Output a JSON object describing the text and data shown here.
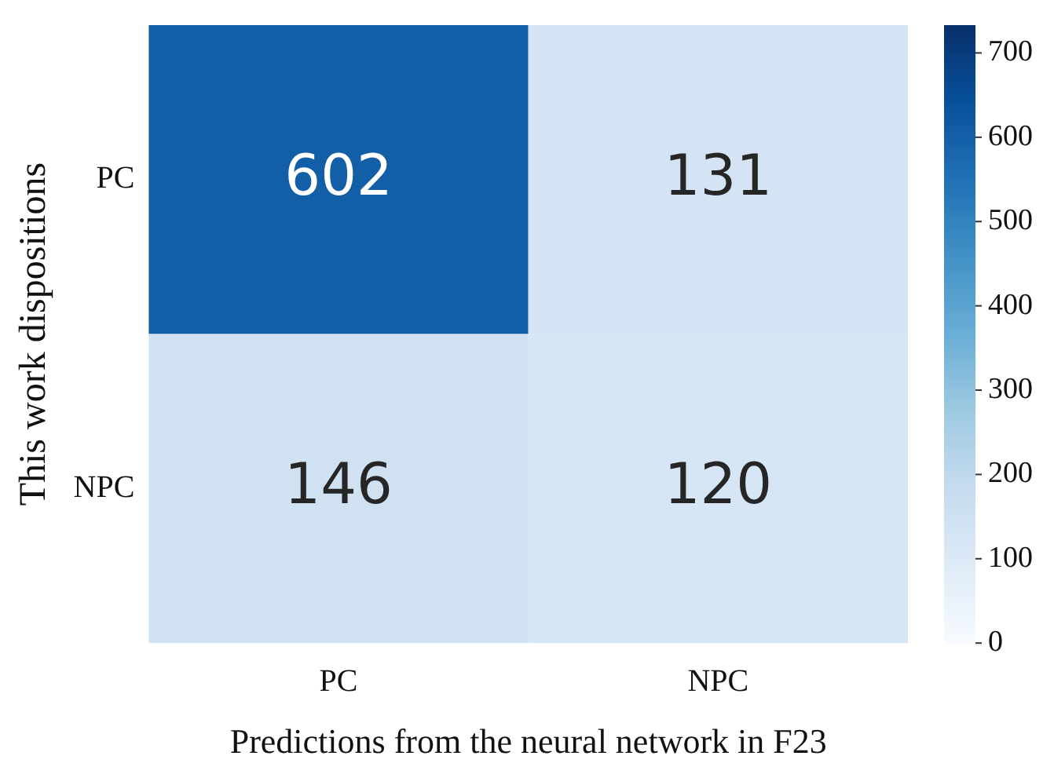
{
  "chart_data": {
    "type": "heatmap",
    "xlabel": "Predictions from the neural network in F23",
    "ylabel": "This work dispositions",
    "categories": [
      "PC",
      "NPC"
    ],
    "y_categories": [
      "PC",
      "NPC"
    ],
    "cells": [
      [
        602,
        131
      ],
      [
        146,
        120
      ]
    ],
    "data_labels": true,
    "clim": [
      0,
      733
    ],
    "cticks": [
      0,
      100,
      200,
      300,
      400,
      500,
      600,
      700
    ]
  }
}
